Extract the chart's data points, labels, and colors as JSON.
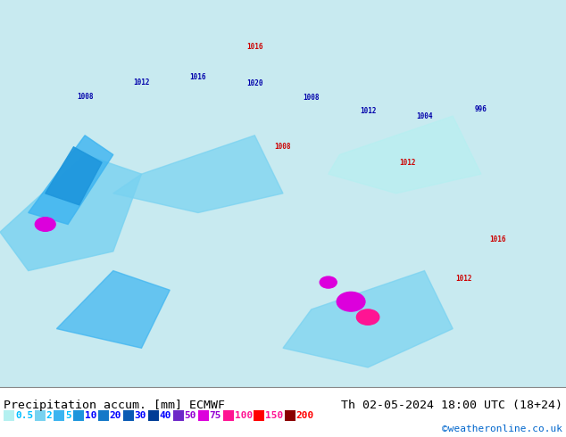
{
  "title_left": "Precipitation accum. [mm] ECMWF",
  "title_right": "Th 02-05-2024 18:00 UTC (18+24)",
  "credit": "©weatheronline.co.uk",
  "colorbar_values": [
    0.5,
    2,
    5,
    10,
    20,
    30,
    40,
    50,
    75,
    100,
    150,
    200
  ],
  "colorbar_colors": [
    "#b4f0f0",
    "#78d2f0",
    "#3cb4f0",
    "#1e96dc",
    "#1478c8",
    "#0a5ab4",
    "#003c96",
    "#6e28c8",
    "#dc00dc",
    "#ff1493",
    "#ff0000",
    "#8b0000"
  ],
  "colorbar_text_colors": [
    "#00bfff",
    "#00bfff",
    "#00bfff",
    "#0000ff",
    "#0000ff",
    "#0000ff",
    "#0000ff",
    "#9400d3",
    "#9400d3",
    "#ff1493",
    "#ff1493",
    "#ff0000"
  ],
  "bg_color": "#c8eaf0",
  "map_bg": "#c8eaf0",
  "border_color": "#aaaaaa",
  "bottom_bar_color": "#ffffff",
  "title_color": "#000000",
  "fig_width": 6.34,
  "fig_height": 4.9
}
